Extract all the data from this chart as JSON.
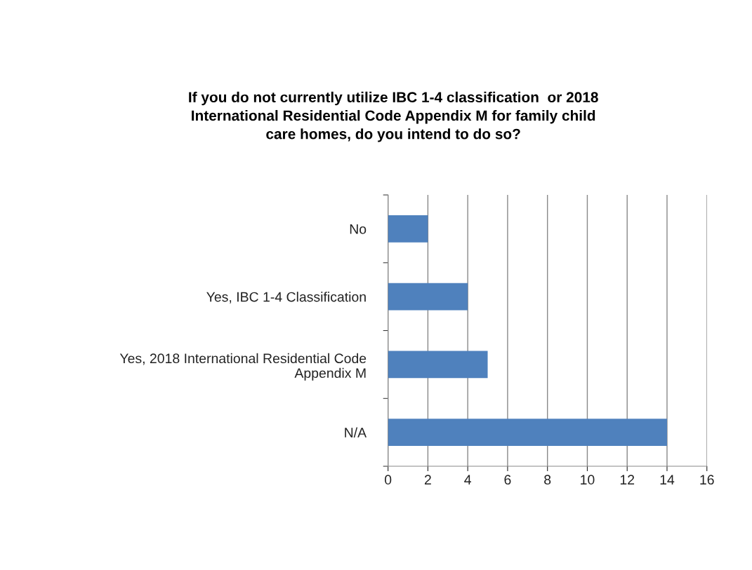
{
  "chart_data": {
    "type": "bar",
    "orientation": "horizontal",
    "title": "If you do not currently utilize IBC 1-4 classification  or 2018\nInternational Residential Code Appendix M for family child\ncare homes, do you intend to do so?",
    "categories": [
      "No",
      "Yes, IBC 1-4 Classification",
      "Yes, 2018 International Residential Code\nAppendix M",
      "N/A"
    ],
    "values": [
      2,
      4,
      5,
      14
    ],
    "color": "#4f81bd",
    "xlim": [
      0,
      16
    ],
    "xticks": [
      0,
      2,
      4,
      6,
      8,
      10,
      12,
      14,
      16
    ],
    "grid": "x"
  }
}
